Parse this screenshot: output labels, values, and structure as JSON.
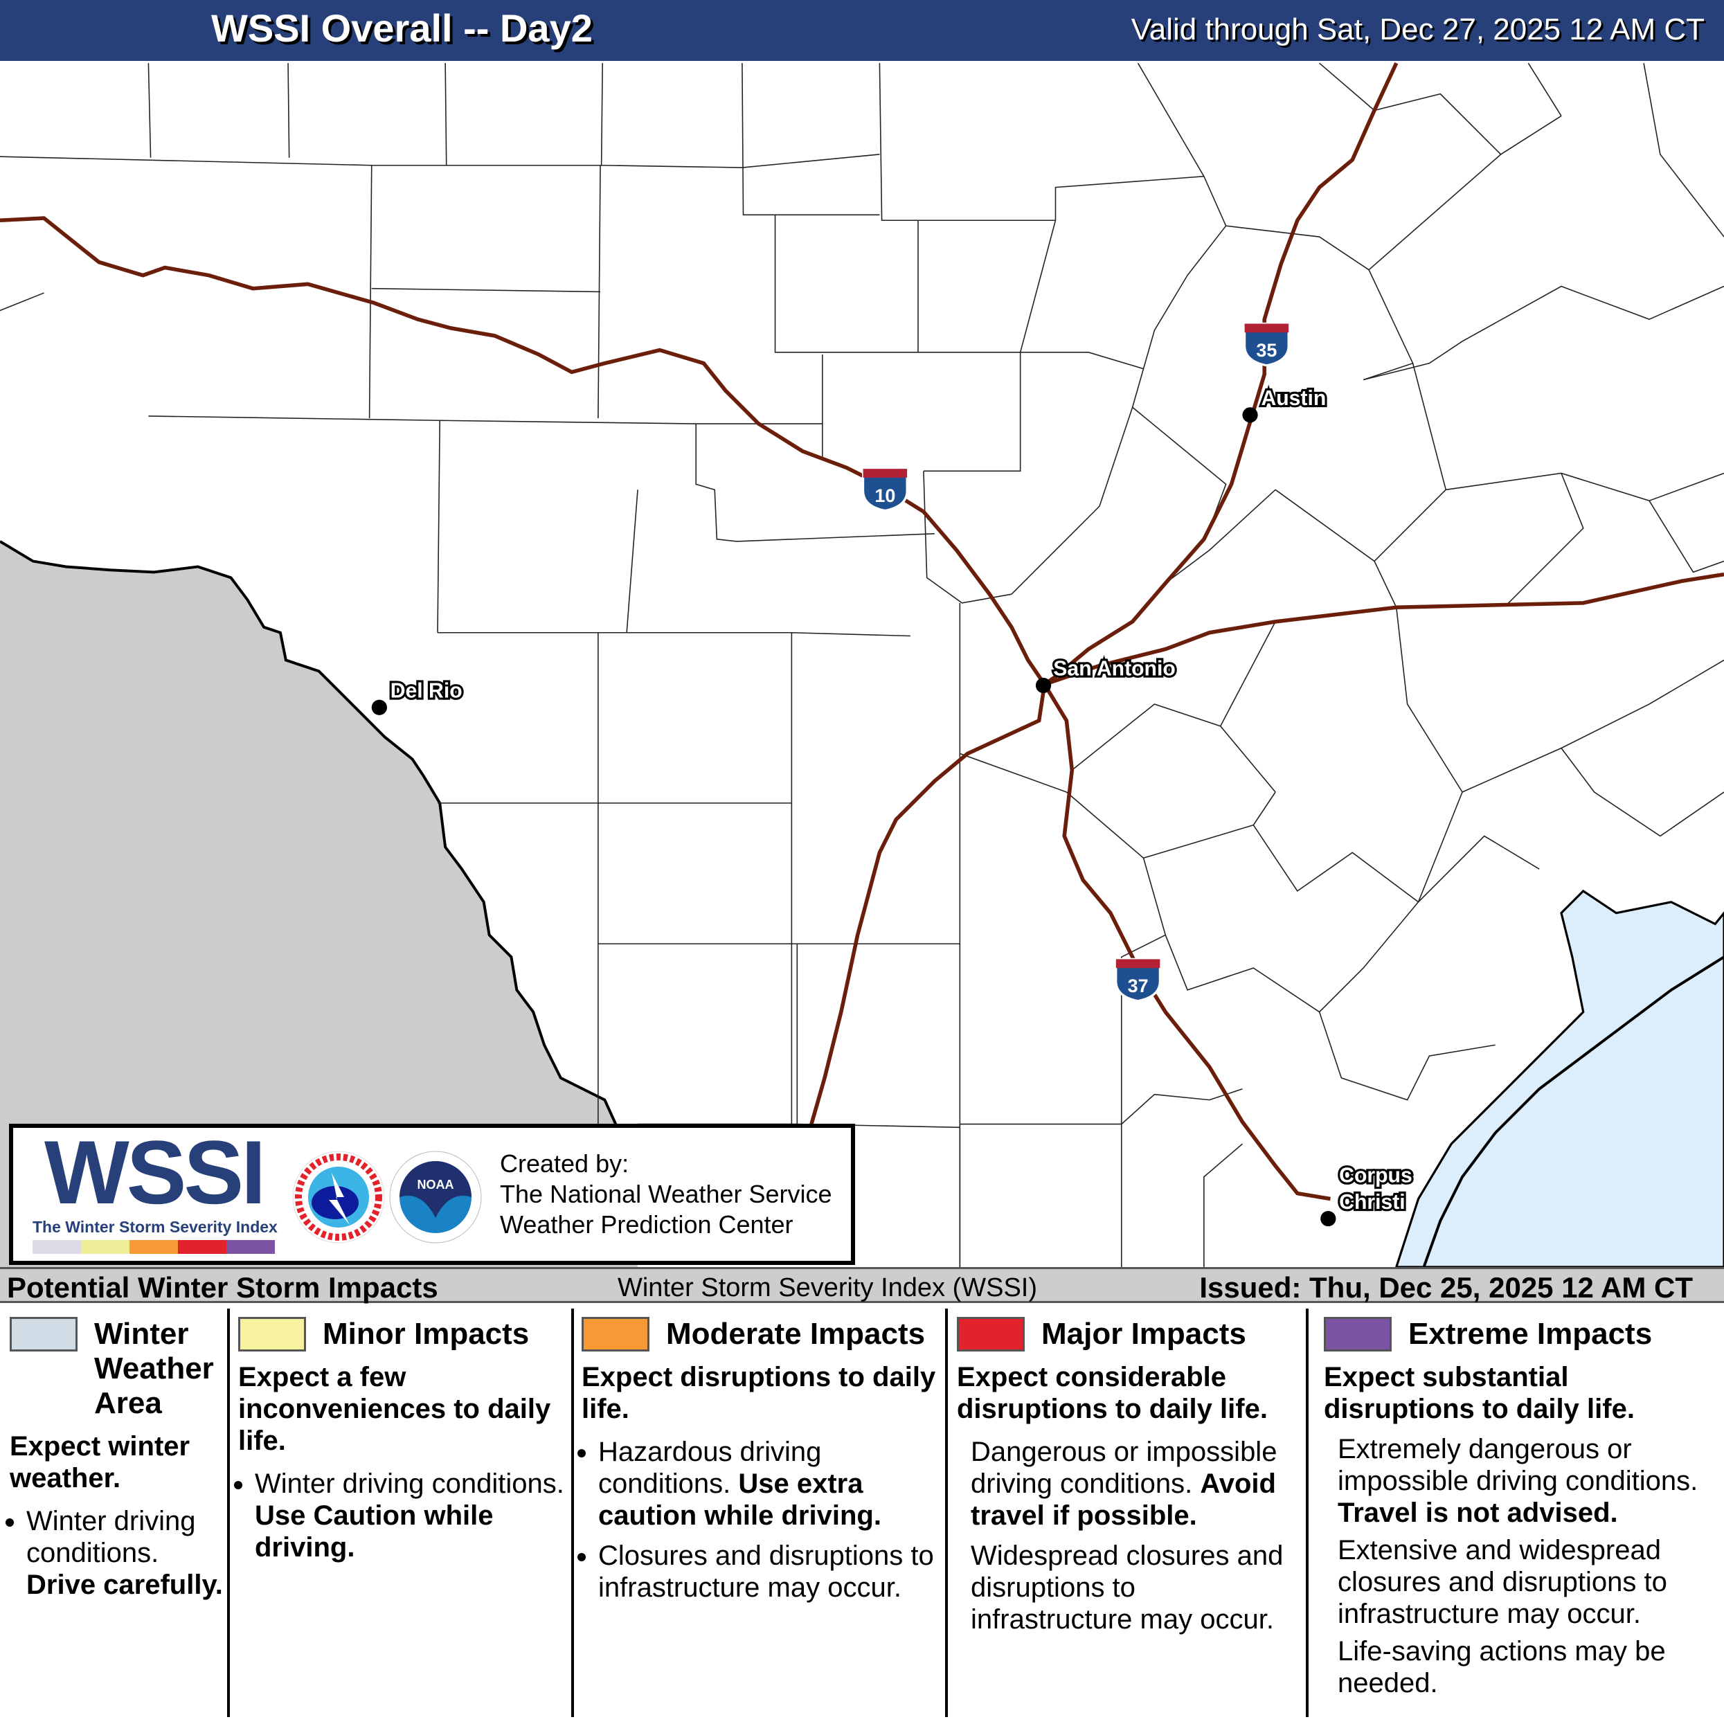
{
  "header": {
    "title": "WSSI Overall -- Day2",
    "valid": "Valid through Sat, Dec 27, 2025 12 AM CT",
    "background": "#27407a"
  },
  "map": {
    "cities": [
      {
        "name": "Del Rio"
      },
      {
        "name": "San Antonio"
      },
      {
        "name": "Austin"
      },
      {
        "name": "Corpus"
      },
      {
        "name": "Christi"
      }
    ],
    "interstates": [
      "10",
      "35",
      "37"
    ],
    "colors": {
      "mexico": "#cccccc",
      "water": "#dceefb",
      "roads": "#6b1e0a"
    }
  },
  "logo": {
    "wordmark": "WSSI",
    "tagline": "The Winter Storm Severity Index",
    "nws_seal": "NATIONAL WEATHER SERVICE",
    "noaa_seal": "NOAA",
    "created_by": "Created by:",
    "org1": "The National Weather Service",
    "org2": "Weather Prediction Center",
    "colors": [
      "#dcdce8",
      "#eeee99",
      "#f79a35",
      "#e3222b",
      "#7b54a3"
    ]
  },
  "legend": {
    "left_title": "Potential Winter Storm Impacts",
    "center_title": "Winter Storm Severity Index (WSSI)",
    "issued": "Issued: Thu, Dec 25, 2025 12 AM CT",
    "columns": [
      {
        "color": "#d1dde6",
        "heading1": "Winter",
        "heading2": "Weather",
        "heading3": "Area",
        "summary": "Expect winter weather.",
        "bullet1_text": "Winter driving conditions.",
        "bullet1_bold": "Drive carefully."
      },
      {
        "color": "#f8f3a0",
        "heading": "Minor Impacts",
        "summary": "Expect a few inconveniences to daily life.",
        "bullet1_text": "Winter driving conditions.",
        "bullet1_bold": "Use Caution while driving."
      },
      {
        "color": "#f79a35",
        "heading": "Moderate Impacts",
        "summary": "Expect disruptions to daily life.",
        "bullet1_text": "Hazardous driving conditions.",
        "bullet1_bold": "Use extra caution while driving.",
        "bullet2_text": "Closures and disruptions to infrastructure may occur."
      },
      {
        "color": "#e3222b",
        "heading": "Major Impacts",
        "summary": "Expect considerable disruptions to daily life.",
        "p1_text": "Dangerous or impossible driving conditions.",
        "p1_bold": "Avoid travel if possible.",
        "p2_text": "Widespread closures and disruptions to infrastructure may occur."
      },
      {
        "color": "#7b54a3",
        "heading": "Extreme Impacts",
        "summary": "Expect substantial disruptions to daily life.",
        "p1_text": "Extremely dangerous or impossible driving conditions.",
        "p1_bold": "Travel is not advised.",
        "p2_text": "Extensive and widespread closures and disruptions to infrastructure may occur.",
        "p3_text": "Life-saving actions may be needed."
      }
    ]
  }
}
